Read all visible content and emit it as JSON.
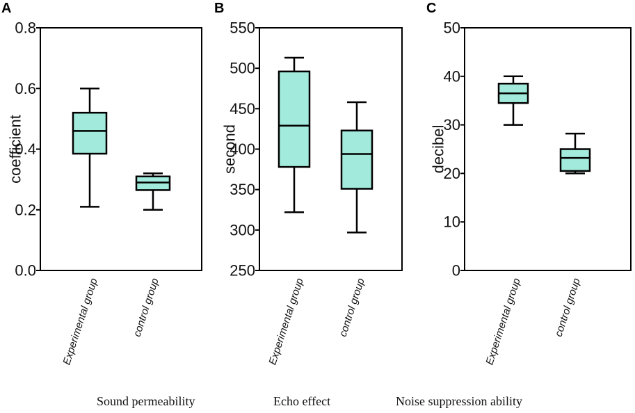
{
  "box_fill": "#a2eadb",
  "line_color": "#000000",
  "chart_data": [
    {
      "type": "box",
      "panel": "A",
      "ylabel": "coefficient",
      "ylim": [
        0.0,
        0.8
      ],
      "yticks": [
        "0.0",
        "0.2",
        "0.4",
        "0.6",
        "0.8"
      ],
      "yticks_values": [
        0.0,
        0.2,
        0.4,
        0.6,
        0.8
      ],
      "categories": [
        "Experimental group",
        "control group"
      ],
      "boxes": [
        {
          "min": 0.21,
          "q1": 0.385,
          "median": 0.46,
          "q3": 0.52,
          "max": 0.6
        },
        {
          "min": 0.2,
          "q1": 0.265,
          "median": 0.29,
          "q3": 0.31,
          "max": 0.32
        }
      ],
      "caption": "Sound permeability"
    },
    {
      "type": "box",
      "panel": "B",
      "ylabel": "second",
      "ylim": [
        250,
        550
      ],
      "yticks": [
        "250",
        "300",
        "350",
        "400",
        "450",
        "500",
        "550"
      ],
      "yticks_values": [
        250,
        300,
        350,
        400,
        450,
        500,
        550
      ],
      "categories": [
        "Experimental group",
        "control group"
      ],
      "boxes": [
        {
          "min": 322,
          "q1": 378,
          "median": 429,
          "q3": 496,
          "max": 513
        },
        {
          "min": 297,
          "q1": 351,
          "median": 394,
          "q3": 423,
          "max": 458
        }
      ],
      "caption": "Echo effect"
    },
    {
      "type": "box",
      "panel": "C",
      "ylabel": "decibel",
      "ylim": [
        0,
        50
      ],
      "yticks": [
        "0",
        "10",
        "20",
        "30",
        "40",
        "50"
      ],
      "yticks_values": [
        0,
        10,
        20,
        30,
        40,
        50
      ],
      "categories": [
        "Experimental group",
        "control group"
      ],
      "boxes": [
        {
          "min": 30,
          "q1": 34.5,
          "median": 36.5,
          "q3": 38.5,
          "max": 40
        },
        {
          "min": 20,
          "q1": 20.5,
          "median": 23.2,
          "q3": 25,
          "max": 28.2
        }
      ],
      "caption": "Noise suppression ability"
    }
  ]
}
